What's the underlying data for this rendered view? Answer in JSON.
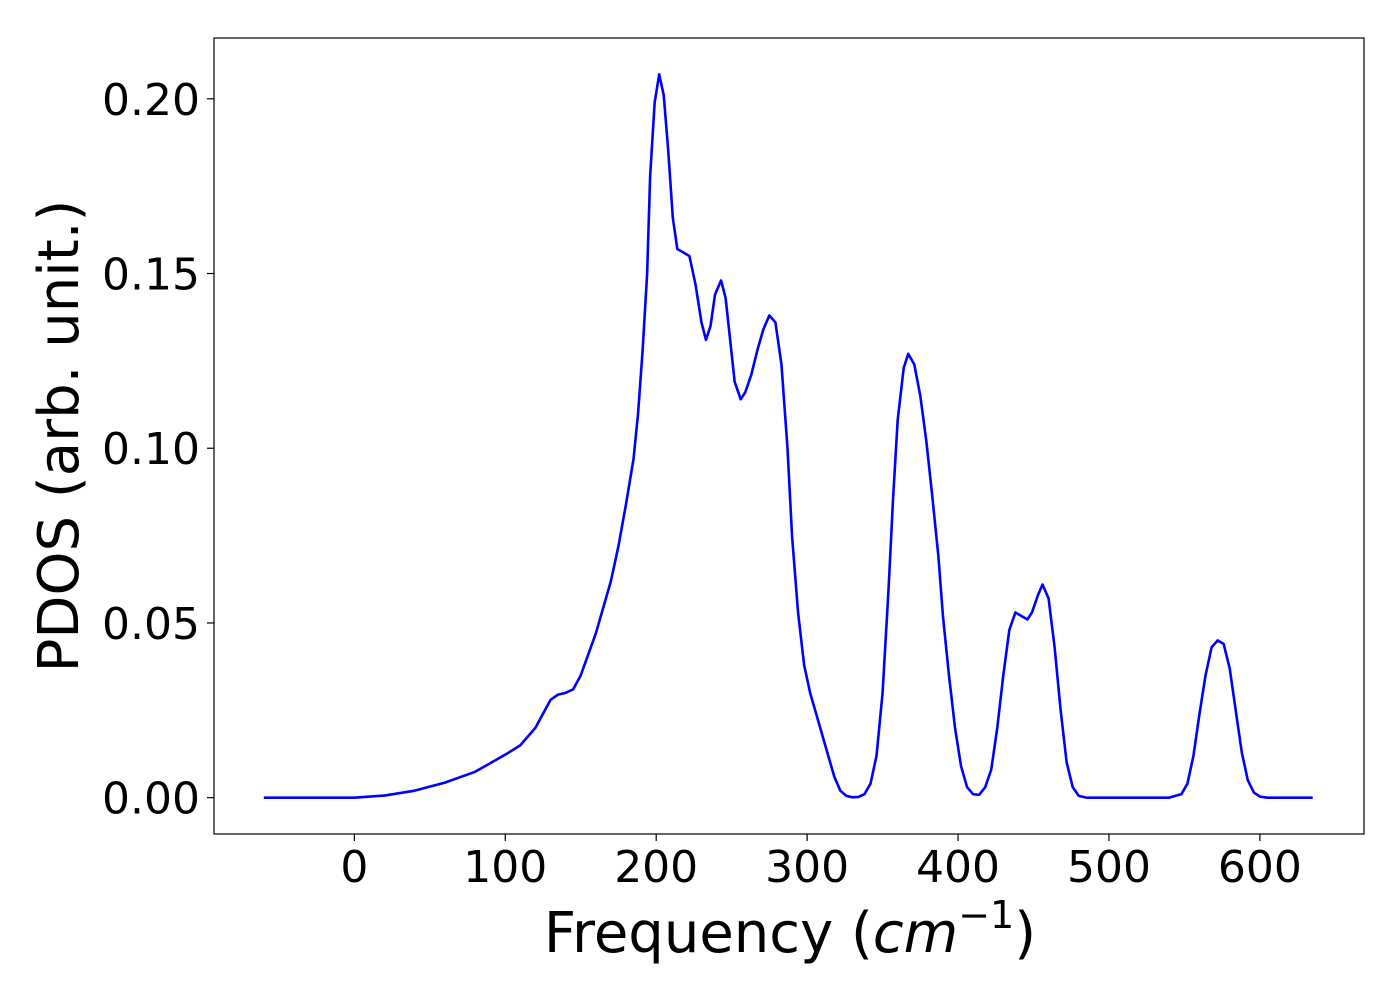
{
  "chart_data": {
    "type": "line",
    "x_label_parts": [
      "Frequency (",
      "cm",
      "−1",
      ")"
    ],
    "y_label": "PDOS (arb. unit.)",
    "xlim": [
      -93,
      669
    ],
    "ylim": [
      -0.0104,
      0.2174
    ],
    "xticks": [
      0,
      100,
      200,
      300,
      400,
      500,
      600
    ],
    "yticks": [
      {
        "value": 0,
        "label": "0.00"
      },
      {
        "value": 0.05,
        "label": "0.05"
      },
      {
        "value": 0.1,
        "label": "0.10"
      },
      {
        "value": 0.15,
        "label": "0.15"
      },
      {
        "value": 0.2,
        "label": "0.20"
      }
    ],
    "series": [
      {
        "color": "#0000ff",
        "x": [
          -60,
          0,
          20,
          40,
          60,
          80,
          100,
          110,
          120,
          125,
          130,
          135,
          140,
          145,
          150,
          160,
          170,
          175,
          180,
          185,
          188,
          191,
          194,
          196,
          199,
          202,
          205,
          208,
          211,
          214,
          218,
          222,
          226,
          230,
          233,
          236,
          239,
          243,
          246,
          249,
          252,
          256,
          259,
          263,
          267,
          271,
          275,
          279,
          283,
          287,
          290,
          294,
          298,
          302,
          306,
          310,
          314,
          318,
          322,
          326,
          330,
          334,
          338,
          342,
          346,
          350,
          354,
          357,
          360,
          364,
          367,
          371,
          375,
          379,
          383,
          387,
          390,
          394,
          398,
          402,
          406,
          410,
          414,
          418,
          422,
          426,
          430,
          434,
          438,
          442,
          446,
          449,
          453,
          456,
          460,
          464,
          468,
          472,
          476,
          480,
          485,
          540,
          548,
          552,
          556,
          560,
          564,
          568,
          572,
          576,
          580,
          584,
          588,
          592,
          596,
          600,
          605,
          635
        ],
        "values": [
          0,
          0,
          0.0006,
          0.002,
          0.0043,
          0.0074,
          0.0123,
          0.015,
          0.02,
          0.024,
          0.028,
          0.0295,
          0.03,
          0.031,
          0.035,
          0.047,
          0.062,
          0.072,
          0.084,
          0.097,
          0.11,
          0.128,
          0.15,
          0.178,
          0.199,
          0.207,
          0.201,
          0.185,
          0.166,
          0.157,
          0.156,
          0.155,
          0.147,
          0.136,
          0.131,
          0.135,
          0.144,
          0.148,
          0.143,
          0.131,
          0.119,
          0.114,
          0.116,
          0.121,
          0.128,
          0.134,
          0.138,
          0.136,
          0.124,
          0.1,
          0.075,
          0.053,
          0.038,
          0.03,
          0.024,
          0.018,
          0.012,
          0.006,
          0.002,
          0.0005,
          0.0001,
          0.0002,
          0.001,
          0.004,
          0.012,
          0.03,
          0.06,
          0.086,
          0.108,
          0.123,
          0.127,
          0.124,
          0.115,
          0.102,
          0.086,
          0.069,
          0.052,
          0.035,
          0.02,
          0.009,
          0.003,
          0.001,
          0.0008,
          0.003,
          0.008,
          0.02,
          0.035,
          0.048,
          0.053,
          0.052,
          0.051,
          0.053,
          0.058,
          0.061,
          0.057,
          0.043,
          0.025,
          0.01,
          0.003,
          0.0005,
          0,
          0,
          0.001,
          0.004,
          0.012,
          0.024,
          0.035,
          0.043,
          0.045,
          0.044,
          0.037,
          0.025,
          0.013,
          0.005,
          0.0015,
          0.0003,
          0,
          0
        ]
      }
    ]
  }
}
